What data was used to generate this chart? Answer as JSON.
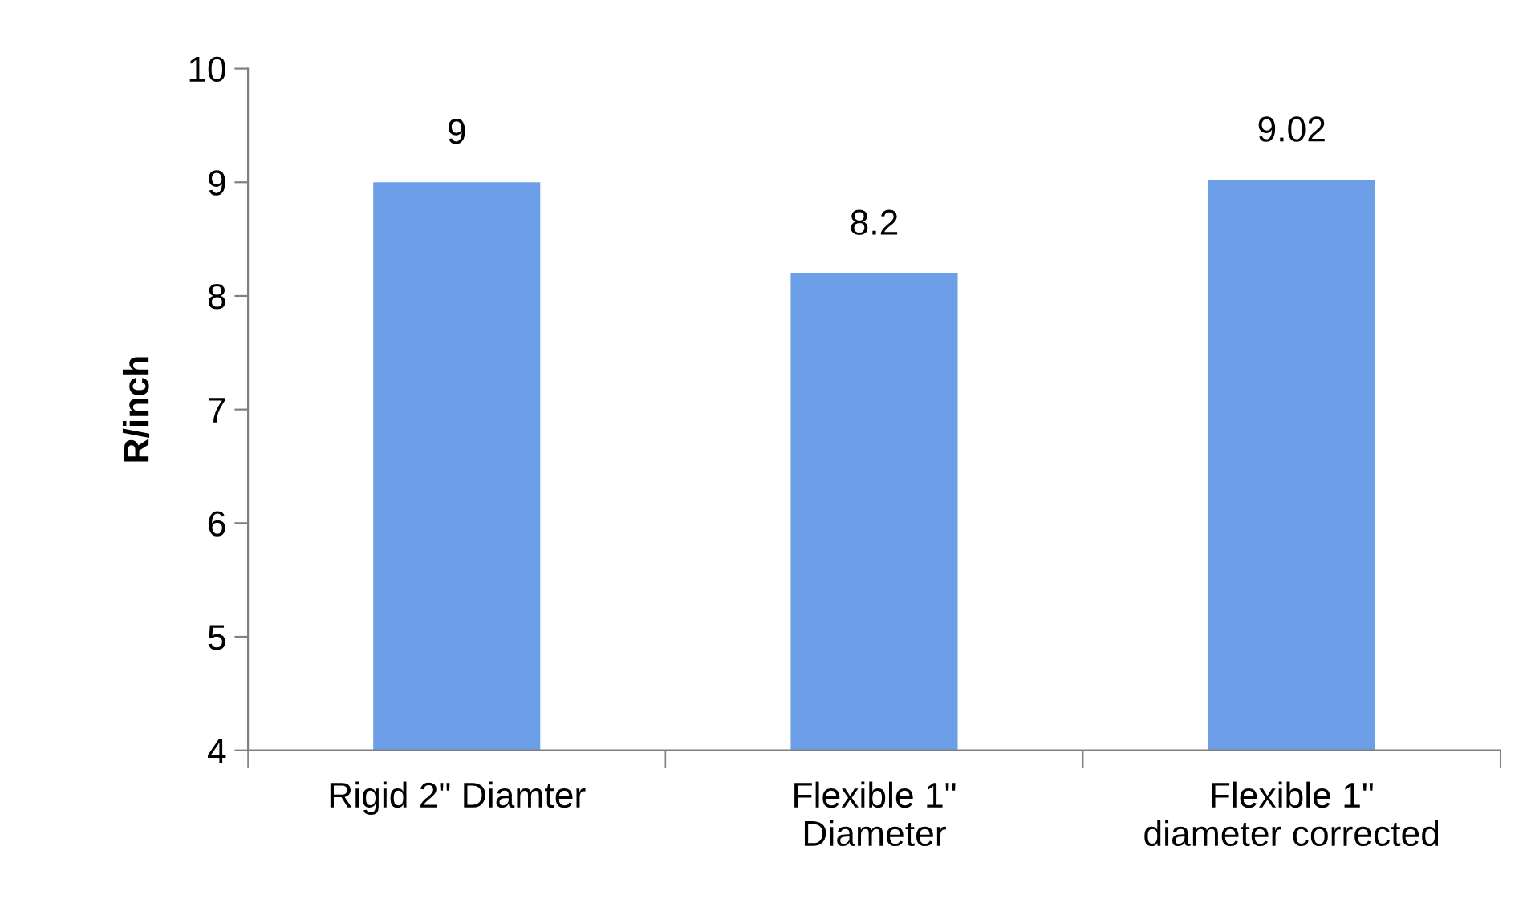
{
  "chart_data": {
    "type": "bar",
    "ylabel": "R/inch",
    "categories": [
      "Rigid 2\" Diamter",
      "Flexible 1\"\nDiameter",
      "Flexible 1\"\ndiameter corrected"
    ],
    "values": [
      9,
      8.2,
      9.02
    ],
    "color": "#6d9fe8",
    "ylim": [
      4,
      10
    ],
    "yticks": [
      4,
      5,
      6,
      7,
      8,
      9,
      10
    ],
    "data_labels": true,
    "grid": false,
    "legend": false
  }
}
